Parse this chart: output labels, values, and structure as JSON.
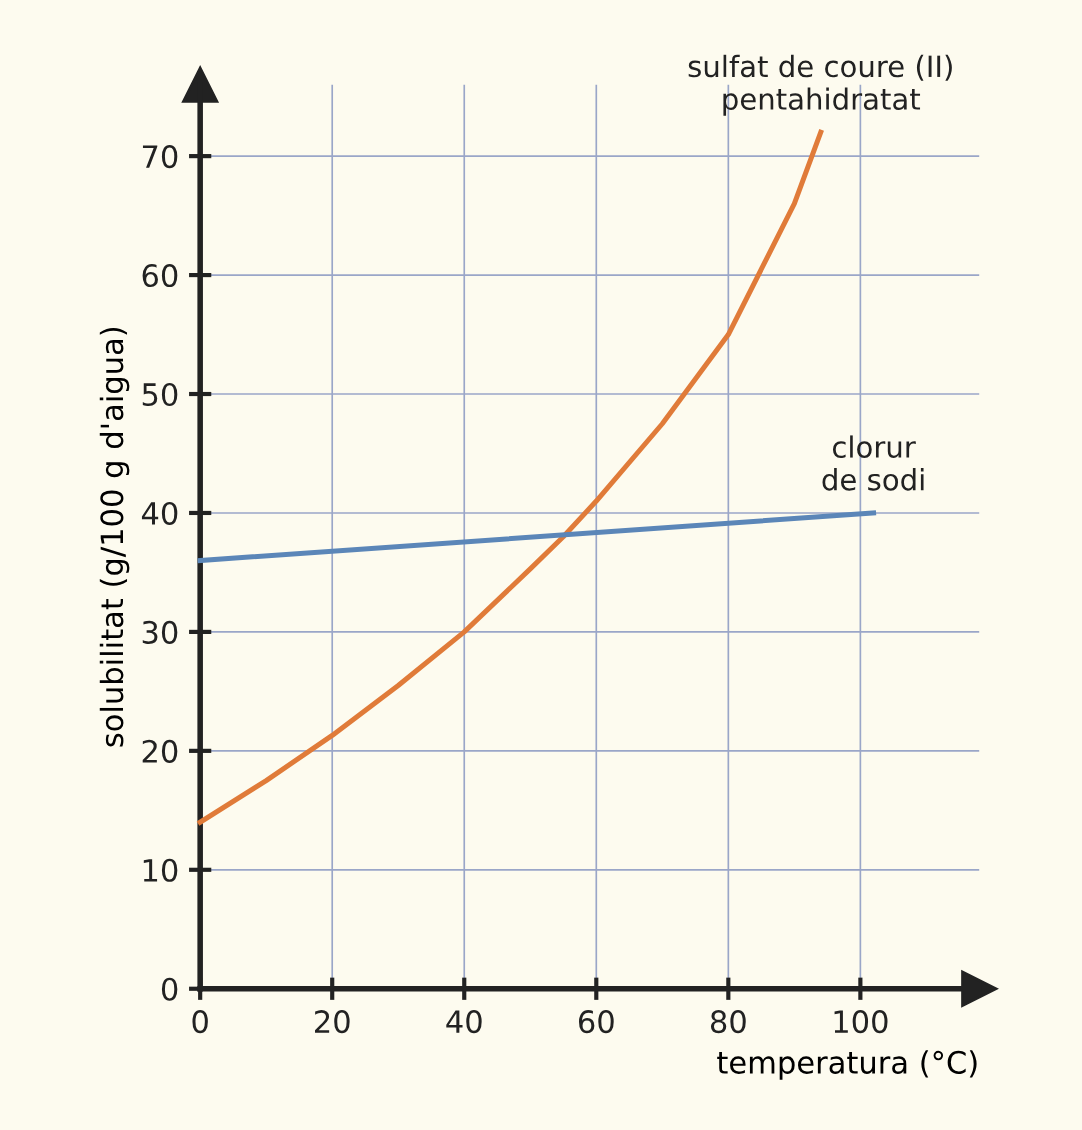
{
  "chart_data": {
    "type": "line",
    "xlabel": "temperatura (°C)",
    "ylabel": "solubilitat (g/100 g d'aigua)",
    "xlim": [
      0,
      118
    ],
    "ylim": [
      0,
      76
    ],
    "xticks": [
      0,
      20,
      40,
      60,
      80,
      100
    ],
    "yticks": [
      0,
      10,
      20,
      30,
      40,
      50,
      60,
      70
    ],
    "grid": true,
    "legend": false,
    "marker": "none",
    "line_style": "solid",
    "series": [
      {
        "name": "sulfat de coure (II)\npentahidratat",
        "color": "#e07b39",
        "x": [
          0,
          10,
          20,
          30,
          40,
          50,
          55,
          60,
          70,
          80,
          90,
          94
        ],
        "values": [
          14,
          17.5,
          21.3,
          25.5,
          30,
          35.3,
          38,
          41,
          47.5,
          55,
          66,
          72
        ]
      },
      {
        "name": "clorur\nde sodi",
        "color": "#5b86b8",
        "x": [
          0,
          102
        ],
        "values": [
          36,
          40
        ]
      }
    ]
  }
}
